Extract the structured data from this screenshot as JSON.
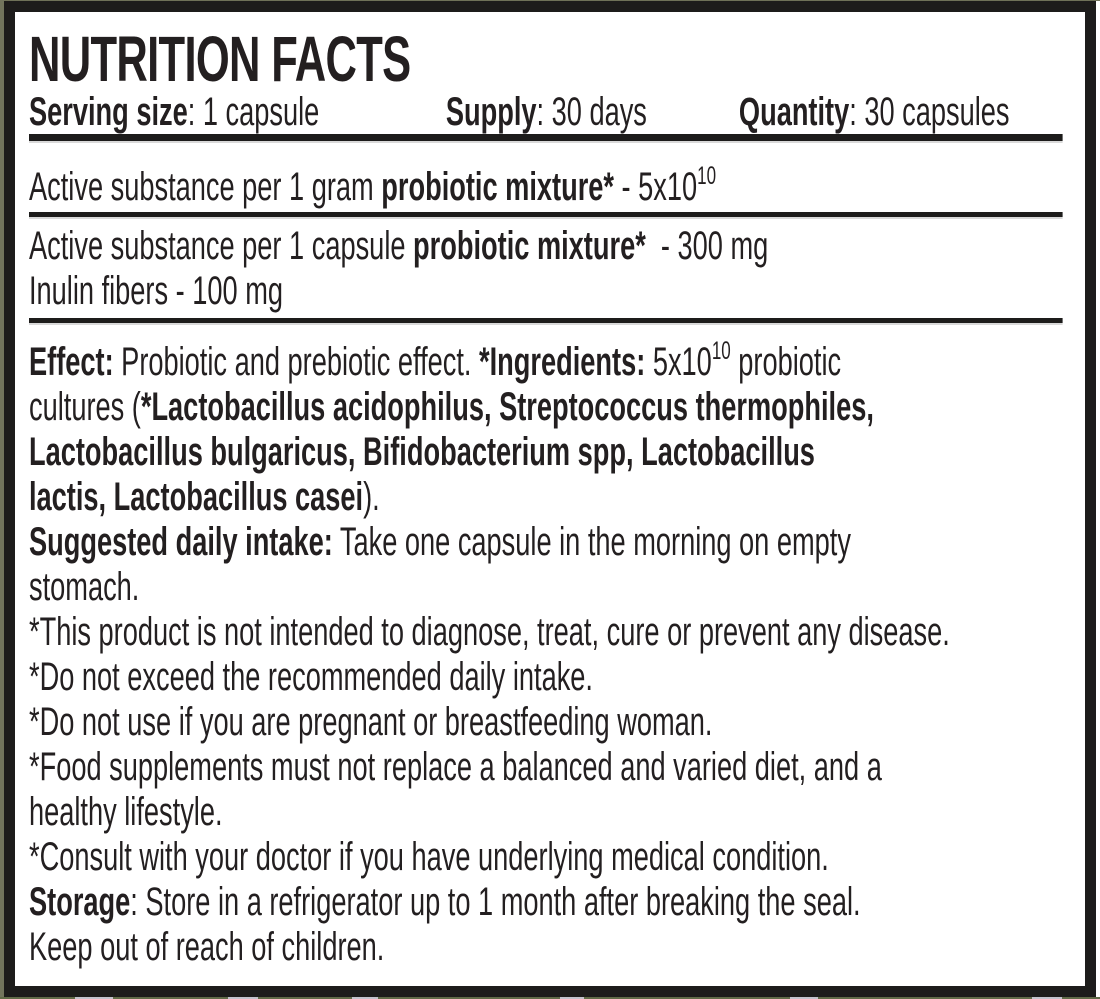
{
  "colors": {
    "text": "#231f20",
    "frame_border": "#1d1c1b",
    "background": "#ffffff",
    "photo_edge_olive": "#6f7158"
  },
  "label": {
    "title": "NUTRITION FACTS",
    "serving_row": {
      "serving_size": [
        {
          "t": "Serving size",
          "b": 1
        },
        {
          "t": ": 1 capsule"
        }
      ],
      "supply": [
        {
          "t": "Supply",
          "b": 1
        },
        {
          "t": ": 30 days"
        }
      ],
      "quantity": [
        {
          "t": "Quantity",
          "b": 1
        },
        {
          "t": ": 30 capsules"
        }
      ]
    },
    "per_gram": {
      "lines": [
        [
          {
            "t": "Active substance per 1 gram "
          },
          {
            "t": "probiotic mixture*",
            "b": 1
          },
          {
            "t": " - 5x10"
          },
          {
            "t": "10",
            "sup": 1
          }
        ]
      ]
    },
    "per_capsule": {
      "lines": [
        [
          {
            "t": "Active substance per 1 capsule "
          },
          {
            "t": "probiotic mixture*",
            "b": 1
          },
          {
            "t": "  - 300 mg"
          }
        ],
        [
          {
            "t": "Inulin fibers - 100 mg"
          }
        ]
      ]
    },
    "details": {
      "lines": [
        [
          {
            "t": "Effect:",
            "b": 1
          },
          {
            "t": " Probiotic and prebiotic effect. "
          },
          {
            "t": "*Ingredients:",
            "b": 1
          },
          {
            "t": " 5x10"
          },
          {
            "t": "10",
            "sup": 1
          },
          {
            "t": " probiotic"
          }
        ],
        [
          {
            "t": "cultures ("
          },
          {
            "t": "*Lactobacillus acidophilus, Streptococcus thermophiles,",
            "b": 1
          }
        ],
        [
          {
            "t": "Lactobacillus bulgaricus, Bifidobacterium spp, Lactobacillus",
            "b": 1
          }
        ],
        [
          {
            "t": "lactis, Lactobacillus casei",
            "b": 1
          },
          {
            "t": ")."
          }
        ],
        [
          {
            "t": "Suggested daily intake:",
            "b": 1
          },
          {
            "t": " Take one capsule in the morning on empty"
          }
        ],
        [
          {
            "t": "stomach."
          }
        ],
        [
          {
            "t": "*This product is not intended to diagnose, treat, cure or prevent any disease."
          }
        ],
        [
          {
            "t": "*Do not exceed the recommended daily intake."
          }
        ],
        [
          {
            "t": "*Do not use if you are pregnant or breastfeeding woman."
          }
        ],
        [
          {
            "t": "*Food supplements must not replace a balanced and varied diet, and a"
          }
        ],
        [
          {
            "t": "healthy lifestyle."
          }
        ],
        [
          {
            "t": "*Consult with your doctor if you have underlying medical condition."
          }
        ],
        [
          {
            "t": "Storage",
            "b": 1
          },
          {
            "t": ": Store in a refrigerator up to 1 month after breaking the seal."
          }
        ],
        [
          {
            "t": "Keep out of reach of children."
          }
        ]
      ]
    }
  }
}
